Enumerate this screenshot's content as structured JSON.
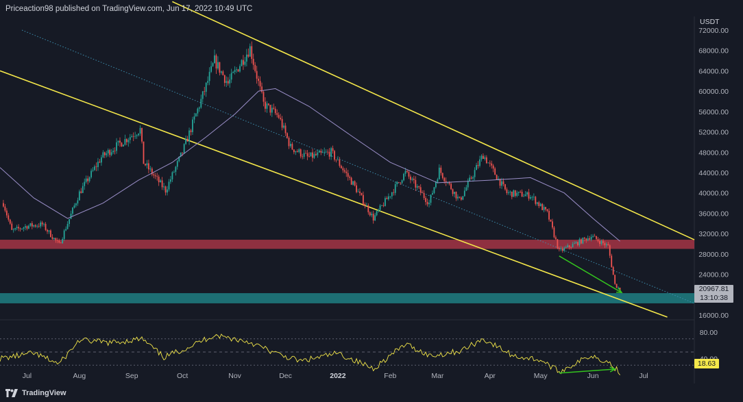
{
  "header": {
    "attribution": "Priceaction98 published on TradingView.com, Jun 17, 2022 10:49 UTC"
  },
  "axis": {
    "unit": "USDT",
    "price_ticks": [
      "72000.00",
      "68000.00",
      "64000.00",
      "60000.00",
      "56000.00",
      "52000.00",
      "48000.00",
      "44000.00",
      "40000.00",
      "36000.00",
      "32000.00",
      "28000.00",
      "24000.00",
      "16000.00"
    ],
    "rsi_ticks": [
      "80.00",
      "40.00"
    ],
    "time_ticks": [
      "Jul",
      "Aug",
      "Sep",
      "Oct",
      "Nov",
      "Dec",
      "2022",
      "Feb",
      "Mar",
      "Apr",
      "May",
      "Jun",
      "Jul"
    ]
  },
  "last_price": {
    "value": "20967.81",
    "countdown": "13:10:38"
  },
  "rsi_last": "18.63",
  "footer": {
    "brand": "TradingView",
    "logo_icon": "tradingview-logo-icon"
  },
  "colors": {
    "up": "#26a69a",
    "down": "#ef5350",
    "channel": "#f5e84a",
    "ma": "#9b8fc9",
    "support_zone": "#a43545",
    "target_zone": "#1e7f82",
    "divergence": "#34c51e",
    "rsi_line": "#f5e84a"
  },
  "chart_data": {
    "type": "candlestick",
    "symbol_currency": "USDT",
    "x_range": [
      "2021-06-15",
      "2022-07-31"
    ],
    "y_range": [
      16000,
      72000
    ],
    "price_closes": [
      {
        "date": "2021-06-17",
        "close": 38000
      },
      {
        "date": "2021-06-22",
        "close": 32500
      },
      {
        "date": "2021-07-01",
        "close": 33500
      },
      {
        "date": "2021-07-10",
        "close": 33800
      },
      {
        "date": "2021-07-20",
        "close": 29800
      },
      {
        "date": "2021-08-01",
        "close": 40000
      },
      {
        "date": "2021-08-14",
        "close": 47000
      },
      {
        "date": "2021-08-22",
        "close": 49000
      },
      {
        "date": "2021-09-06",
        "close": 52500
      },
      {
        "date": "2021-09-08",
        "close": 46000
      },
      {
        "date": "2021-09-21",
        "close": 40500
      },
      {
        "date": "2021-10-01",
        "close": 48000
      },
      {
        "date": "2021-10-15",
        "close": 61000
      },
      {
        "date": "2021-10-20",
        "close": 66000
      },
      {
        "date": "2021-10-28",
        "close": 61500
      },
      {
        "date": "2021-11-10",
        "close": 68500
      },
      {
        "date": "2021-11-18",
        "close": 57500
      },
      {
        "date": "2021-11-27",
        "close": 55000
      },
      {
        "date": "2021-12-04",
        "close": 49000
      },
      {
        "date": "2021-12-14",
        "close": 47000
      },
      {
        "date": "2021-12-28",
        "close": 48000
      },
      {
        "date": "2022-01-10",
        "close": 41800
      },
      {
        "date": "2022-01-22",
        "close": 35000
      },
      {
        "date": "2022-02-10",
        "close": 44000
      },
      {
        "date": "2022-02-24",
        "close": 38000
      },
      {
        "date": "2022-03-02",
        "close": 44500
      },
      {
        "date": "2022-03-14",
        "close": 38500
      },
      {
        "date": "2022-03-28",
        "close": 47500
      },
      {
        "date": "2022-04-11",
        "close": 40000
      },
      {
        "date": "2022-04-25",
        "close": 39500
      },
      {
        "date": "2022-05-05",
        "close": 36000
      },
      {
        "date": "2022-05-12",
        "close": 28500
      },
      {
        "date": "2022-05-31",
        "close": 31500
      },
      {
        "date": "2022-06-10",
        "close": 29500
      },
      {
        "date": "2022-06-14",
        "close": 22000
      },
      {
        "date": "2022-06-17",
        "close": 20967.81
      }
    ],
    "moving_average": [
      {
        "date": "2021-06-15",
        "value": 45000
      },
      {
        "date": "2021-07-05",
        "value": 39000
      },
      {
        "date": "2021-07-25",
        "value": 35000
      },
      {
        "date": "2021-08-15",
        "value": 38000
      },
      {
        "date": "2021-09-05",
        "value": 42500
      },
      {
        "date": "2021-09-25",
        "value": 46000
      },
      {
        "date": "2021-10-15",
        "value": 51000
      },
      {
        "date": "2021-11-01",
        "value": 55500
      },
      {
        "date": "2021-11-15",
        "value": 60000
      },
      {
        "date": "2021-11-25",
        "value": 60500
      },
      {
        "date": "2021-12-15",
        "value": 57000
      },
      {
        "date": "2022-01-10",
        "value": 51000
      },
      {
        "date": "2022-02-01",
        "value": 46000
      },
      {
        "date": "2022-03-01",
        "value": 42000
      },
      {
        "date": "2022-04-01",
        "value": 42500
      },
      {
        "date": "2022-04-25",
        "value": 43000
      },
      {
        "date": "2022-05-15",
        "value": 40000
      },
      {
        "date": "2022-06-01",
        "value": 35000
      },
      {
        "date": "2022-06-17",
        "value": 30500
      }
    ],
    "channel_upper": [
      {
        "date": "2021-09-25",
        "value": 77600
      },
      {
        "date": "2022-07-31",
        "value": 30800
      }
    ],
    "channel_lower": [
      {
        "date": "2021-06-15",
        "value": 64000
      },
      {
        "date": "2022-07-15",
        "value": 15600
      }
    ],
    "channel_mid": [
      {
        "date": "2021-06-28",
        "value": 72000
      },
      {
        "date": "2022-07-31",
        "value": 18300
      }
    ],
    "zones": [
      {
        "name": "support",
        "low": 29000,
        "high": 30800
      },
      {
        "name": "target",
        "low": 18300,
        "high": 20300
      }
    ],
    "divergence": {
      "price": [
        {
          "date": "2022-05-12",
          "value": 27600
        },
        {
          "date": "2022-06-18",
          "value": 20400
        }
      ],
      "rsi": [
        {
          "date": "2022-05-12",
          "value": 18
        },
        {
          "date": "2022-06-14",
          "value": 24
        }
      ]
    },
    "rsi": {
      "y_range": [
        0,
        100
      ],
      "levels": [
        70,
        50,
        30
      ],
      "ticks": [
        80,
        40
      ],
      "points": [
        {
          "date": "2021-06-15",
          "value": 40
        },
        {
          "date": "2021-07-05",
          "value": 48
        },
        {
          "date": "2021-07-20",
          "value": 32
        },
        {
          "date": "2021-08-01",
          "value": 68
        },
        {
          "date": "2021-08-20",
          "value": 64
        },
        {
          "date": "2021-09-07",
          "value": 70
        },
        {
          "date": "2021-09-20",
          "value": 42
        },
        {
          "date": "2021-10-05",
          "value": 58
        },
        {
          "date": "2021-10-20",
          "value": 76
        },
        {
          "date": "2021-11-10",
          "value": 65
        },
        {
          "date": "2021-11-25",
          "value": 48
        },
        {
          "date": "2021-12-10",
          "value": 36
        },
        {
          "date": "2022-01-01",
          "value": 48
        },
        {
          "date": "2022-01-22",
          "value": 25
        },
        {
          "date": "2022-02-10",
          "value": 62
        },
        {
          "date": "2022-02-25",
          "value": 44
        },
        {
          "date": "2022-03-15",
          "value": 52
        },
        {
          "date": "2022-03-28",
          "value": 70
        },
        {
          "date": "2022-04-15",
          "value": 44
        },
        {
          "date": "2022-05-01",
          "value": 38
        },
        {
          "date": "2022-05-12",
          "value": 20
        },
        {
          "date": "2022-05-31",
          "value": 45
        },
        {
          "date": "2022-06-10",
          "value": 35
        },
        {
          "date": "2022-06-17",
          "value": 18.63
        }
      ]
    }
  }
}
